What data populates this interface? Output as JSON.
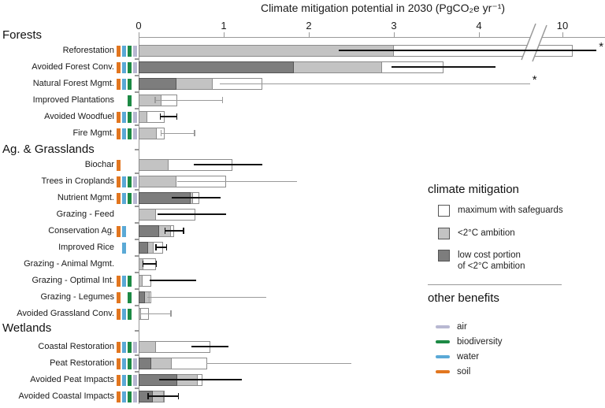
{
  "chart_data": {
    "type": "bar",
    "orientation": "horizontal",
    "title": "Climate mitigation potential in 2030 (PgCO₂e yr⁻¹)",
    "x_axis": {
      "ticks": [
        0,
        1,
        2,
        3,
        4,
        10
      ],
      "axis_break": true,
      "break_after_value": 4.6,
      "units": "PgCO2e per yr"
    },
    "series_legend": [
      "maximum with safeguards",
      "<2°C ambition",
      "low cost portion of <2°C ambition"
    ],
    "sections": [
      {
        "label": "Forests",
        "rows": [
          {
            "label": "Reforestation",
            "low_cost": null,
            "ambition_2c": 3.0,
            "maximum": 10.12,
            "error": [
              2.35,
              10.4
            ],
            "error_style": "black",
            "caps": false,
            "beyond_scale": true,
            "benefits": [
              "soil",
              "water",
              "biodiversity",
              "air"
            ]
          },
          {
            "label": "Avoided Forest Conv.",
            "low_cost": 1.82,
            "ambition_2c": 2.86,
            "maximum": 3.58,
            "error": [
              2.97,
              4.19
            ],
            "error_style": "black",
            "caps": false,
            "beyond_scale": false,
            "benefits": [
              "soil",
              "water",
              "biodiversity",
              "air"
            ]
          },
          {
            "label": "Natural Forest Mgmt.",
            "low_cost": 0.44,
            "ambition_2c": 0.87,
            "maximum": 1.45,
            "error": [
              0.95,
              4.6
            ],
            "error_style": "thin",
            "caps": false,
            "beyond_scale": true,
            "benefits": [
              "soil",
              "water",
              "biodiversity"
            ]
          },
          {
            "label": "Improved Plantations",
            "low_cost": null,
            "ambition_2c": 0.27,
            "maximum": 0.45,
            "error": [
              0.19,
              0.99
            ],
            "error_style": "thin",
            "caps": true,
            "beyond_scale": false,
            "benefits": [
              "biodiversity"
            ]
          },
          {
            "label": "Avoided Woodfuel",
            "low_cost": null,
            "ambition_2c": 0.1,
            "maximum": 0.31,
            "error": [
              0.25,
              0.45
            ],
            "error_style": "black",
            "caps": true,
            "beyond_scale": false,
            "benefits": [
              "soil",
              "water",
              "biodiversity",
              "air"
            ]
          },
          {
            "label": "Fire Mgmt.",
            "low_cost": null,
            "ambition_2c": 0.21,
            "maximum": 0.31,
            "error": [
              0.26,
              0.66
            ],
            "error_style": "thin",
            "caps": true,
            "beyond_scale": false,
            "benefits": [
              "soil",
              "water",
              "biodiversity",
              "air"
            ]
          }
        ]
      },
      {
        "label": "Ag. & Grasslands",
        "rows": [
          {
            "label": "Biochar",
            "low_cost": null,
            "ambition_2c": 0.35,
            "maximum": 1.1,
            "error": [
              0.65,
              1.45
            ],
            "error_style": "black",
            "caps": false,
            "beyond_scale": false,
            "benefits": [
              "soil"
            ]
          },
          {
            "label": "Trees in Croplands",
            "low_cost": null,
            "ambition_2c": 0.44,
            "maximum": 1.03,
            "error": [
              0.45,
              1.86
            ],
            "error_style": "thin",
            "caps": false,
            "beyond_scale": false,
            "benefits": [
              "soil",
              "water",
              "biodiversity",
              "air"
            ]
          },
          {
            "label": "Nutrient Mgmt.",
            "low_cost": 0.61,
            "ambition_2c": 0.64,
            "maximum": 0.71,
            "error": [
              0.39,
              0.96
            ],
            "error_style": "black",
            "caps": false,
            "beyond_scale": false,
            "benefits": [
              "soil",
              "water",
              "biodiversity",
              "air"
            ]
          },
          {
            "label": "Grazing - Feed",
            "low_cost": null,
            "ambition_2c": 0.2,
            "maximum": 0.67,
            "error": [
              0.22,
              1.03
            ],
            "error_style": "black",
            "caps": false,
            "beyond_scale": false,
            "benefits": []
          },
          {
            "label": "Conservation Ag.",
            "low_cost": 0.24,
            "ambition_2c": 0.38,
            "maximum": 0.42,
            "error": [
              0.31,
              0.53
            ],
            "error_style": "black",
            "caps": true,
            "beyond_scale": false,
            "benefits": [
              "soil",
              "water"
            ]
          },
          {
            "label": "Improved Rice",
            "low_cost": 0.11,
            "ambition_2c": 0.18,
            "maximum": 0.29,
            "error": [
              0.2,
              0.33
            ],
            "error_style": "black",
            "caps": true,
            "beyond_scale": false,
            "benefits": [
              "water"
            ]
          },
          {
            "label": "Grazing - Animal Mgmt.",
            "low_cost": null,
            "ambition_2c": 0.06,
            "maximum": 0.2,
            "error": [
              0.05,
              0.21
            ],
            "error_style": "black",
            "caps": true,
            "beyond_scale": false,
            "benefits": []
          },
          {
            "label": "Grazing - Optimal Int.",
            "low_cost": null,
            "ambition_2c": 0.05,
            "maximum": 0.15,
            "error": [
              0.13,
              0.68
            ],
            "error_style": "black",
            "caps": false,
            "beyond_scale": false,
            "benefits": [
              "soil",
              "water",
              "biodiversity"
            ]
          },
          {
            "label": "Grazing - Legumes",
            "low_cost": 0.07,
            "ambition_2c": 0.13,
            "maximum": 0.15,
            "error": [
              0.1,
              1.5
            ],
            "error_style": "thin",
            "caps": false,
            "beyond_scale": false,
            "benefits": [
              "soil",
              "biodiversity"
            ]
          },
          {
            "label": "Avoided Grassland Conv.",
            "low_cost": null,
            "ambition_2c": 0.03,
            "maximum": 0.12,
            "error": [
              0.02,
              0.38
            ],
            "error_style": "thin",
            "caps": true,
            "beyond_scale": false,
            "benefits": [
              "soil",
              "water",
              "biodiversity"
            ]
          }
        ]
      },
      {
        "label": "Wetlands",
        "rows": [
          {
            "label": "Coastal Restoration",
            "low_cost": null,
            "ambition_2c": 0.2,
            "maximum": 0.84,
            "error": [
              0.62,
              1.06
            ],
            "error_style": "black",
            "caps": false,
            "beyond_scale": false,
            "benefits": [
              "soil",
              "water",
              "biodiversity",
              "air"
            ]
          },
          {
            "label": "Peat Restoration",
            "low_cost": 0.15,
            "ambition_2c": 0.39,
            "maximum": 0.81,
            "error": [
              0.8,
              2.5
            ],
            "error_style": "thin",
            "caps": false,
            "beyond_scale": false,
            "benefits": [
              "soil",
              "water",
              "biodiversity",
              "air"
            ]
          },
          {
            "label": "Avoided Peat Impacts",
            "low_cost": 0.45,
            "ambition_2c": 0.69,
            "maximum": 0.75,
            "error": [
              0.24,
              1.21
            ],
            "error_style": "black",
            "caps": false,
            "beyond_scale": false,
            "benefits": [
              "soil",
              "water",
              "biodiversity",
              "air"
            ]
          },
          {
            "label": "Avoided Coastal Impacts",
            "low_cost": 0.17,
            "ambition_2c": 0.3,
            "maximum": 0.31,
            "error": [
              0.11,
              0.47
            ],
            "error_style": "black",
            "caps": true,
            "beyond_scale": false,
            "benefits": [
              "soil",
              "water",
              "biodiversity",
              "air"
            ]
          }
        ]
      }
    ]
  },
  "legend_mitigation": {
    "title": "climate mitigation",
    "items": [
      {
        "label": "maximum with safeguards"
      },
      {
        "label": "<2°C ambition"
      },
      {
        "label_line1": "low cost portion",
        "label_line2": "of <2°C ambition"
      }
    ]
  },
  "legend_benefits": {
    "title": "other benefits",
    "items": [
      {
        "label": "air"
      },
      {
        "label": "biodiversity"
      },
      {
        "label": "water"
      },
      {
        "label": "soil"
      }
    ]
  },
  "annotations": {
    "beyond_scale_marker": "*"
  },
  "colors": {
    "bar_max_fill": "#ffffff",
    "bar_ambition_fill": "#c3c3c3",
    "bar_lowcost_fill": "#7d7d7d",
    "bar_border": "#8c8c8c",
    "bar_border_dark": "#555555",
    "air": "#b8b8d2",
    "biodiversity": "#1d8a45",
    "water": "#5aa9d6",
    "soil": "#e2761f",
    "axis": "#999999",
    "error_black": "#111111",
    "error_thin": "#9a9a9a",
    "text": "#1a1a1a"
  }
}
